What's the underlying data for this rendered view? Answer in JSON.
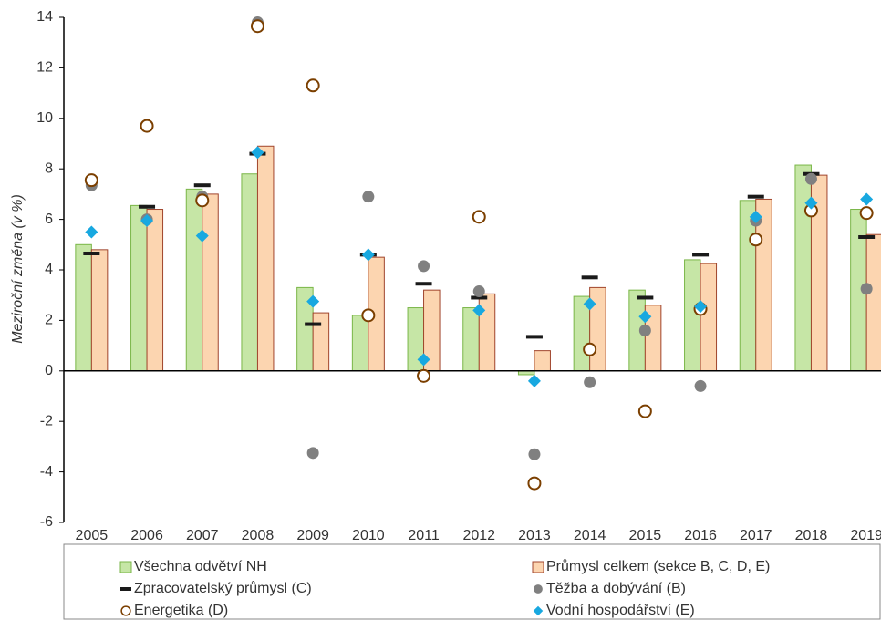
{
  "chart_data": {
    "type": "combo",
    "y_label": "Meziroční změna (v %)",
    "categories": [
      "2005",
      "2006",
      "2007",
      "2008",
      "2009",
      "2010",
      "2011",
      "2012",
      "2013",
      "2014",
      "2015",
      "2016",
      "2017",
      "2018",
      "2019"
    ],
    "series": [
      {
        "name": "Všechna odvětví NH",
        "marker": "bar",
        "color": "#c6e6a6",
        "stroke": "#7ab648",
        "values": [
          5.0,
          6.55,
          7.2,
          7.8,
          3.3,
          2.2,
          2.5,
          2.5,
          -0.15,
          2.95,
          3.2,
          4.4,
          6.75,
          8.15,
          6.4
        ]
      },
      {
        "name": "Průmysl celkem (sekce B, C, D, E)",
        "marker": "bar",
        "color": "#fcd5b0",
        "stroke": "#a0442c",
        "values": [
          4.8,
          6.4,
          7.0,
          8.9,
          2.3,
          4.5,
          3.2,
          3.05,
          0.8,
          3.3,
          2.6,
          4.25,
          6.8,
          7.75,
          5.4
        ]
      },
      {
        "name": "Zpracovatelský průmysl (C)",
        "marker": "dash",
        "color": "#1a1a1a",
        "values": [
          4.65,
          6.5,
          7.35,
          8.6,
          1.85,
          4.6,
          3.45,
          2.9,
          1.35,
          3.7,
          2.9,
          4.6,
          6.9,
          7.8,
          5.3
        ]
      },
      {
        "name": "Těžba a dobývání (B)",
        "marker": "dot",
        "color": "#808080",
        "values": [
          7.35,
          6.0,
          6.9,
          13.8,
          -3.25,
          6.9,
          4.15,
          3.15,
          -3.3,
          -0.45,
          1.6,
          -0.6,
          5.95,
          7.6,
          3.25
        ]
      },
      {
        "name": "Energetika (D)",
        "marker": "circle",
        "color": "#7b3f00",
        "values": [
          7.55,
          9.7,
          6.75,
          13.65,
          11.3,
          2.2,
          -0.2,
          6.1,
          -4.45,
          0.85,
          -1.6,
          2.45,
          5.2,
          6.35,
          6.25
        ]
      },
      {
        "name": "Vodní hospodářství (E)",
        "marker": "diamond",
        "color": "#18a8e0",
        "values": [
          5.5,
          5.95,
          5.35,
          8.65,
          2.75,
          4.6,
          0.45,
          2.4,
          -0.4,
          2.65,
          2.15,
          2.55,
          6.1,
          6.65,
          6.8
        ]
      }
    ],
    "ylim": [
      -6,
      14
    ],
    "yticks": [
      -6,
      -4,
      -2,
      0,
      2,
      4,
      6,
      8,
      10,
      12,
      14
    ]
  }
}
